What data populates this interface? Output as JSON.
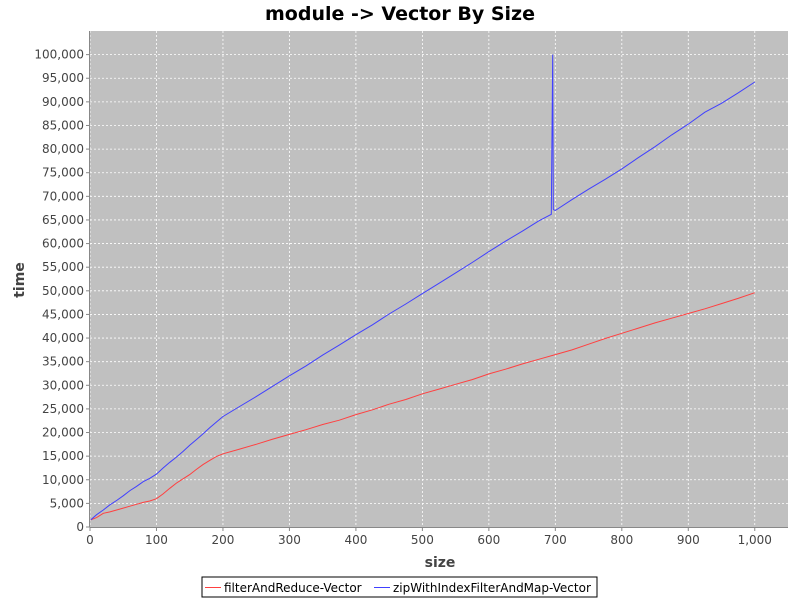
{
  "chart_data": {
    "type": "line",
    "title": "module -> Vector By Size",
    "xlabel": "size",
    "ylabel": "time",
    "xlim": [
      0,
      1050
    ],
    "ylim": [
      0,
      105000
    ],
    "x_ticks": [
      0,
      100,
      200,
      300,
      400,
      500,
      600,
      700,
      800,
      900,
      1000
    ],
    "x_tick_labels": [
      "0",
      "100",
      "200",
      "300",
      "400",
      "500",
      "600",
      "700",
      "800",
      "900",
      "1,000"
    ],
    "y_ticks": [
      0,
      5000,
      10000,
      15000,
      20000,
      25000,
      30000,
      35000,
      40000,
      45000,
      50000,
      55000,
      60000,
      65000,
      70000,
      75000,
      80000,
      85000,
      90000,
      95000,
      100000
    ],
    "y_tick_labels": [
      "0",
      "5,000",
      "10,000",
      "15,000",
      "20,000",
      "25,000",
      "30,000",
      "35,000",
      "40,000",
      "45,000",
      "50,000",
      "55,000",
      "60,000",
      "65,000",
      "70,000",
      "75,000",
      "80,000",
      "85,000",
      "90,000",
      "95,000",
      "100,000"
    ],
    "grid": true,
    "legend_position": "bottom",
    "background": "#c0c0c0",
    "series": [
      {
        "name": "filterAndReduce-Vector",
        "color": "#ff4040",
        "x": [
          1,
          10,
          20,
          30,
          40,
          50,
          60,
          70,
          80,
          90,
          100,
          110,
          120,
          130,
          140,
          150,
          160,
          170,
          180,
          190,
          200,
          225,
          250,
          275,
          300,
          325,
          350,
          375,
          400,
          425,
          450,
          475,
          500,
          525,
          550,
          575,
          600,
          625,
          650,
          675,
          700,
          725,
          750,
          775,
          800,
          825,
          850,
          875,
          900,
          925,
          950,
          975,
          1000
        ],
        "y": [
          1500,
          2000,
          2900,
          3200,
          3600,
          4000,
          4400,
          4800,
          5200,
          5500,
          6000,
          7000,
          8200,
          9300,
          10200,
          11100,
          12200,
          13200,
          14100,
          14900,
          15500,
          16500,
          17500,
          18600,
          19600,
          20600,
          21700,
          22600,
          23800,
          24800,
          26000,
          27000,
          28200,
          29200,
          30200,
          31200,
          32400,
          33400,
          34500,
          35500,
          36500,
          37500,
          38700,
          39900,
          41000,
          42100,
          43200,
          44200,
          45200,
          46200,
          47300,
          48400,
          49600
        ]
      },
      {
        "name": "zipWithIndexFilterAndMap-Vector",
        "color": "#4040ff",
        "x": [
          1,
          10,
          20,
          30,
          40,
          50,
          60,
          70,
          80,
          90,
          100,
          110,
          120,
          130,
          140,
          150,
          160,
          170,
          180,
          190,
          200,
          225,
          250,
          275,
          300,
          325,
          350,
          375,
          400,
          425,
          450,
          475,
          500,
          525,
          550,
          575,
          600,
          625,
          650,
          675,
          694,
          696,
          697,
          698,
          700,
          725,
          750,
          775,
          800,
          825,
          850,
          875,
          900,
          925,
          950,
          975,
          1000
        ],
        "y": [
          1500,
          2600,
          3600,
          4700,
          5600,
          6600,
          7700,
          8600,
          9600,
          10300,
          11200,
          12500,
          13700,
          14800,
          16000,
          17300,
          18500,
          19700,
          21000,
          22200,
          23400,
          25500,
          27600,
          29800,
          32000,
          34100,
          36400,
          38500,
          40700,
          42800,
          45100,
          47200,
          49400,
          51600,
          53800,
          56000,
          58300,
          60500,
          62600,
          64800,
          66200,
          100000,
          67300,
          67100,
          67000,
          69300,
          71500,
          73600,
          75800,
          78200,
          80500,
          83000,
          85300,
          87800,
          89700,
          91900,
          94200
        ]
      }
    ]
  }
}
